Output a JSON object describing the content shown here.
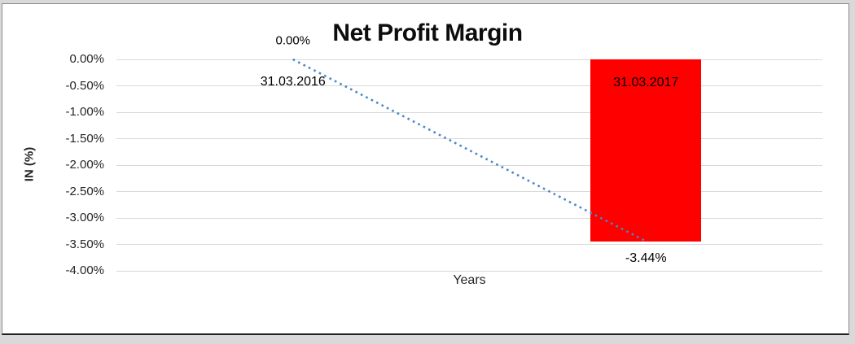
{
  "chart_data": {
    "type": "bar",
    "title": "Net Profit Margin",
    "xlabel": "Years",
    "ylabel": "IN (%)",
    "categories": [
      "31.03.2016",
      "31.03.2017"
    ],
    "series": [
      {
        "name": "Net Profit Margin",
        "type": "bar",
        "values": [
          0.0,
          -3.44
        ]
      },
      {
        "name": "Trendline",
        "type": "dotted-line",
        "values": [
          0.0,
          -3.44
        ]
      }
    ],
    "value_labels": [
      "0.00%",
      "-3.44%"
    ],
    "y_ticks": [
      "0.00%",
      "-0.50%",
      "-1.00%",
      "-1.50%",
      "-2.00%",
      "-2.50%",
      "-3.00%",
      "-3.50%",
      "-4.00%"
    ],
    "ylim": [
      -4.0,
      0.0
    ],
    "grid": true,
    "legend": "none",
    "colors": {
      "bar": "#fe0000",
      "trendline": "#4a86c8",
      "gridline": "#d9d9d9",
      "text": "#262626",
      "title": "#0d0d0d"
    }
  }
}
